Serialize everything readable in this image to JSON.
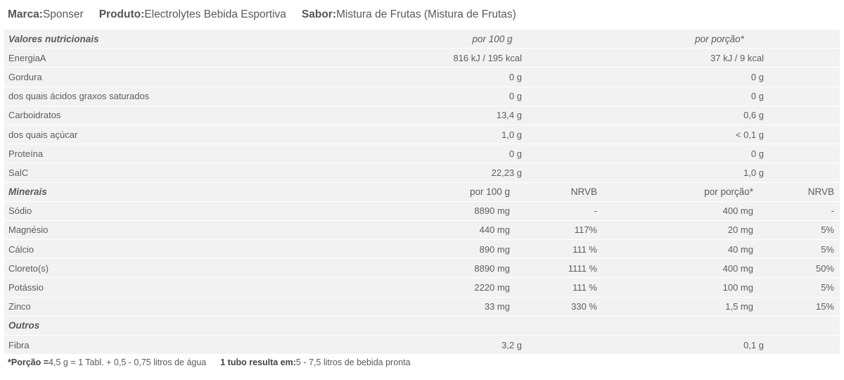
{
  "header": {
    "brand_key": "Marca:",
    "brand_value": "Sponser",
    "product_key": "Produto:",
    "product_value": "Electrolytes Bebida Esportiva",
    "flavor_key": "Sabor:",
    "flavor_value": "Mistura de Frutas (Mistura de Frutas)"
  },
  "nutrition": {
    "title": "Valores nutricionais",
    "col1": "por 100 g",
    "col2": "por porção*",
    "rows": [
      {
        "name": "EnergiaA",
        "v1": "816 kJ / 195 kcal",
        "v2": "37 kJ / 9 kcal"
      },
      {
        "name": "Gordura",
        "v1": "0 g",
        "v2": "0 g"
      },
      {
        "name": "dos quais ácidos graxos saturados",
        "v1": "0 g",
        "v2": "0 g"
      },
      {
        "name": "Carboidratos",
        "v1": "13,4 g",
        "v2": "0,6 g"
      },
      {
        "name": "dos quais açúcar",
        "v1": "1,0 g",
        "v2": "< 0,1 g"
      },
      {
        "name": "Proteína",
        "v1": "0 g",
        "v2": "0 g"
      },
      {
        "name": "SalC",
        "v1": "22,23 g",
        "v2": "1,0 g"
      }
    ]
  },
  "minerals": {
    "title": "Minerais",
    "col1": "por 100 g",
    "col2": "NRVB",
    "col3": "por porção*",
    "col4": "NRVB",
    "rows": [
      {
        "name": "Sódio",
        "v1": "8890 mg",
        "n1": "-",
        "v2": "400 mg",
        "n2": "-"
      },
      {
        "name": "Magnésio",
        "v1": "440 mg",
        "n1": "117%",
        "v2": "20 mg",
        "n2": "5%"
      },
      {
        "name": "Cálcio",
        "v1": "890 mg",
        "n1": "111 %",
        "v2": "40 mg",
        "n2": "5%"
      },
      {
        "name": "Cloreto(s)",
        "v1": "8890 mg",
        "n1": "1111 %",
        "v2": "400 mg",
        "n2": "50%"
      },
      {
        "name": "Potássio",
        "v1": "2220 mg",
        "n1": "111 %",
        "v2": "100 mg",
        "n2": "5%"
      },
      {
        "name": "Zinco",
        "v1": "33 mg",
        "n1": "330 %",
        "v2": "1,5 mg",
        "n2": "15%"
      }
    ]
  },
  "others": {
    "title": "Outros",
    "rows": [
      {
        "name": "Fibra",
        "v1": "3,2 g",
        "v2": "0,1 g"
      }
    ]
  },
  "footer": {
    "portion_key": "*Porção =",
    "portion_value": "4,5 g = 1 Tabl. + 0,5 - 0,75 litros de água",
    "tube_key": "1 tubo resulta em:",
    "tube_value": "5 - 7,5 litros de bebida pronta"
  }
}
